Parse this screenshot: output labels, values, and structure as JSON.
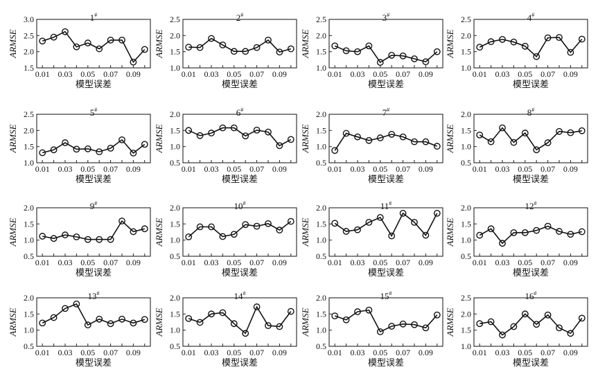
{
  "chart_data": [
    {
      "type": "line",
      "title": "1",
      "title_sup": "#",
      "xlabel": "模型误差",
      "ylabel": "ARMSE",
      "x": [
        0.01,
        0.02,
        0.03,
        0.04,
        0.05,
        0.06,
        0.07,
        0.08,
        0.09,
        0.1
      ],
      "xticks": [
        "0.01",
        "0.03",
        "0.05",
        "0.07",
        "0.09"
      ],
      "ylim": [
        1.5,
        3.0
      ],
      "yticks": [
        "1.5",
        "2.0",
        "2.5",
        "3.0"
      ],
      "values": [
        2.33,
        2.45,
        2.62,
        2.15,
        2.27,
        2.09,
        2.36,
        2.36,
        1.68,
        2.07
      ]
    },
    {
      "type": "line",
      "title": "2",
      "title_sup": "#",
      "xlabel": "模型误差",
      "ylabel": "ARMSE",
      "x": [
        0.01,
        0.02,
        0.03,
        0.04,
        0.05,
        0.06,
        0.07,
        0.08,
        0.09,
        0.1
      ],
      "xticks": [
        "0.01",
        "0.03",
        "0.05",
        "0.07",
        "0.09"
      ],
      "ylim": [
        1.0,
        2.5
      ],
      "yticks": [
        "1.0",
        "1.5",
        "2.0",
        "2.5"
      ],
      "values": [
        1.64,
        1.63,
        1.91,
        1.71,
        1.51,
        1.51,
        1.63,
        1.86,
        1.49,
        1.59
      ]
    },
    {
      "type": "line",
      "title": "3",
      "title_sup": "#",
      "xlabel": "模型误差",
      "ylabel": "ARMSE",
      "x": [
        0.01,
        0.02,
        0.03,
        0.04,
        0.05,
        0.06,
        0.07,
        0.08,
        0.09,
        0.1
      ],
      "xticks": [
        "0.01",
        "0.03",
        "0.05",
        "0.07",
        "0.09"
      ],
      "ylim": [
        1.0,
        2.5
      ],
      "yticks": [
        "1.0",
        "1.5",
        "2.0",
        "2.5"
      ],
      "values": [
        1.68,
        1.53,
        1.5,
        1.68,
        1.17,
        1.39,
        1.37,
        1.28,
        1.19,
        1.5
      ]
    },
    {
      "type": "line",
      "title": "4",
      "title_sup": "#",
      "xlabel": "模型误差",
      "ylabel": "ARMSE",
      "x": [
        0.01,
        0.02,
        0.03,
        0.04,
        0.05,
        0.06,
        0.07,
        0.08,
        0.09,
        0.1
      ],
      "xticks": [
        "0.01",
        "0.03",
        "0.05",
        "0.07",
        "0.09"
      ],
      "ylim": [
        1.0,
        2.5
      ],
      "yticks": [
        "1.0",
        "1.5",
        "2.0",
        "2.5"
      ],
      "values": [
        1.64,
        1.81,
        1.88,
        1.8,
        1.67,
        1.35,
        1.93,
        1.94,
        1.48,
        1.89
      ]
    },
    {
      "type": "line",
      "title": "5",
      "title_sup": "#",
      "xlabel": "模型误差",
      "ylabel": "ARMSE",
      "x": [
        0.01,
        0.02,
        0.03,
        0.04,
        0.05,
        0.06,
        0.07,
        0.08,
        0.09,
        0.1
      ],
      "xticks": [
        "0.01",
        "0.03",
        "0.05",
        "0.07",
        "0.09"
      ],
      "ylim": [
        1.0,
        2.5
      ],
      "yticks": [
        "1.0",
        "1.5",
        "2.0",
        "2.5"
      ],
      "values": [
        1.31,
        1.4,
        1.62,
        1.42,
        1.43,
        1.34,
        1.45,
        1.71,
        1.3,
        1.57
      ]
    },
    {
      "type": "line",
      "title": "6",
      "title_sup": "#",
      "xlabel": "模型误差",
      "ylabel": "ARMSE",
      "x": [
        0.01,
        0.02,
        0.03,
        0.04,
        0.05,
        0.06,
        0.07,
        0.08,
        0.09,
        0.1
      ],
      "xticks": [
        "0.01",
        "0.03",
        "0.05",
        "0.07",
        "0.09"
      ],
      "ylim": [
        0.5,
        2.0
      ],
      "yticks": [
        "0.5",
        "1.0",
        "1.5",
        "2.0"
      ],
      "values": [
        1.5,
        1.34,
        1.42,
        1.58,
        1.58,
        1.33,
        1.51,
        1.45,
        1.03,
        1.22
      ]
    },
    {
      "type": "line",
      "title": "7",
      "title_sup": "#",
      "xlabel": "模型误差",
      "ylabel": "ARMSE",
      "x": [
        0.01,
        0.02,
        0.03,
        0.04,
        0.05,
        0.06,
        0.07,
        0.08,
        0.09,
        0.1
      ],
      "xticks": [
        "0.01",
        "0.03",
        "0.05",
        "0.07",
        "0.09"
      ],
      "ylim": [
        0.5,
        2.0
      ],
      "yticks": [
        "0.5",
        "1.0",
        "1.5",
        "2.0"
      ],
      "values": [
        0.88,
        1.41,
        1.3,
        1.19,
        1.27,
        1.38,
        1.3,
        1.15,
        1.15,
        1.01
      ]
    },
    {
      "type": "line",
      "title": "8",
      "title_sup": "#",
      "xlabel": "模型误差",
      "ylabel": "ARMSE",
      "x": [
        0.01,
        0.02,
        0.03,
        0.04,
        0.05,
        0.06,
        0.07,
        0.08,
        0.09,
        0.1
      ],
      "xticks": [
        "0.01",
        "0.03",
        "0.05",
        "0.07",
        "0.09"
      ],
      "ylim": [
        0.5,
        2.0
      ],
      "yticks": [
        "0.5",
        "1.0",
        "1.5",
        "2.0"
      ],
      "values": [
        1.36,
        1.15,
        1.58,
        1.13,
        1.42,
        0.9,
        1.12,
        1.47,
        1.43,
        1.49
      ]
    },
    {
      "type": "line",
      "title": "9",
      "title_sup": "#",
      "xlabel": "模型误差",
      "ylabel": "ARMSE",
      "x": [
        0.01,
        0.02,
        0.03,
        0.04,
        0.05,
        0.06,
        0.07,
        0.08,
        0.09,
        0.1
      ],
      "xticks": [
        "0.01",
        "0.03",
        "0.05",
        "0.07",
        "0.09"
      ],
      "ylim": [
        0.5,
        2.0
      ],
      "yticks": [
        "0.5",
        "1.0",
        "1.5",
        "2.0"
      ],
      "values": [
        1.12,
        1.05,
        1.16,
        1.1,
        1.02,
        1.02,
        1.02,
        1.59,
        1.26,
        1.35
      ]
    },
    {
      "type": "line",
      "title": "10",
      "title_sup": "#",
      "xlabel": "模型误差",
      "ylabel": "ARMSE",
      "x": [
        0.01,
        0.02,
        0.03,
        0.04,
        0.05,
        0.06,
        0.07,
        0.08,
        0.09,
        0.1
      ],
      "xticks": [
        "0.01",
        "0.03",
        "0.05",
        "0.07",
        "0.09"
      ],
      "ylim": [
        0.5,
        2.0
      ],
      "yticks": [
        "0.5",
        "1.0",
        "1.5",
        "2.0"
      ],
      "values": [
        1.1,
        1.41,
        1.41,
        1.11,
        1.18,
        1.48,
        1.43,
        1.51,
        1.31,
        1.58
      ]
    },
    {
      "type": "line",
      "title": "11",
      "title_sup": "#",
      "xlabel": "模型误差",
      "ylabel": "ARMSE",
      "x": [
        0.01,
        0.02,
        0.03,
        0.04,
        0.05,
        0.06,
        0.07,
        0.08,
        0.09,
        0.1
      ],
      "xticks": [
        "0.01",
        "0.03",
        "0.05",
        "0.07",
        "0.09"
      ],
      "ylim": [
        0.5,
        2.0
      ],
      "yticks": [
        "0.5",
        "1.0",
        "1.5",
        "2.0"
      ],
      "values": [
        1.52,
        1.27,
        1.32,
        1.55,
        1.7,
        1.13,
        1.83,
        1.55,
        1.15,
        1.83
      ]
    },
    {
      "type": "line",
      "title": "12",
      "title_sup": "#",
      "xlabel": "模型误差",
      "ylabel": "ARMSE",
      "x": [
        0.01,
        0.02,
        0.03,
        0.04,
        0.05,
        0.06,
        0.07,
        0.08,
        0.09,
        0.1
      ],
      "xticks": [
        "0.01",
        "0.03",
        "0.05",
        "0.07",
        "0.09"
      ],
      "ylim": [
        0.5,
        2.0
      ],
      "yticks": [
        "0.5",
        "1.0",
        "1.5",
        "2.0"
      ],
      "values": [
        1.15,
        1.35,
        0.9,
        1.23,
        1.23,
        1.3,
        1.43,
        1.27,
        1.18,
        1.26
      ]
    },
    {
      "type": "line",
      "title": "13",
      "title_sup": "#",
      "xlabel": "模型误差",
      "ylabel": "ARMSE",
      "x": [
        0.01,
        0.02,
        0.03,
        0.04,
        0.05,
        0.06,
        0.07,
        0.08,
        0.09,
        0.1
      ],
      "xticks": [
        "0.01",
        "0.03",
        "0.05",
        "0.07",
        "0.09"
      ],
      "ylim": [
        0.5,
        2.0
      ],
      "yticks": [
        "0.5",
        "1.0",
        "1.5",
        "2.0"
      ],
      "values": [
        1.22,
        1.39,
        1.67,
        1.81,
        1.16,
        1.34,
        1.2,
        1.34,
        1.22,
        1.33
      ]
    },
    {
      "type": "line",
      "title": "14",
      "title_sup": "#",
      "xlabel": "模型误差",
      "ylabel": "ARMSE",
      "x": [
        0.01,
        0.02,
        0.03,
        0.04,
        0.05,
        0.06,
        0.07,
        0.08,
        0.09,
        0.1
      ],
      "xticks": [
        "0.01",
        "0.03",
        "0.05",
        "0.07",
        "0.09"
      ],
      "ylim": [
        0.5,
        2.0
      ],
      "yticks": [
        "0.5",
        "1.0",
        "1.5",
        "2.0"
      ],
      "values": [
        1.36,
        1.24,
        1.5,
        1.54,
        1.2,
        0.9,
        1.72,
        1.14,
        1.11,
        1.58
      ]
    },
    {
      "type": "line",
      "title": "15",
      "title_sup": "#",
      "xlabel": "模型误差",
      "ylabel": "ARMSE",
      "x": [
        0.01,
        0.02,
        0.03,
        0.04,
        0.05,
        0.06,
        0.07,
        0.08,
        0.09,
        0.1
      ],
      "xticks": [
        "0.01",
        "0.03",
        "0.05",
        "0.07",
        "0.09"
      ],
      "ylim": [
        0.5,
        2.0
      ],
      "yticks": [
        "0.5",
        "1.0",
        "1.5",
        "2.0"
      ],
      "values": [
        1.44,
        1.32,
        1.57,
        1.62,
        0.95,
        1.12,
        1.19,
        1.17,
        1.07,
        1.47
      ]
    },
    {
      "type": "line",
      "title": "16",
      "title_sup": "#",
      "xlabel": "模型误差",
      "ylabel": "ARMSE",
      "x": [
        0.01,
        0.02,
        0.03,
        0.04,
        0.05,
        0.06,
        0.07,
        0.08,
        0.09,
        0.1
      ],
      "xticks": [
        "0.01",
        "0.03",
        "0.05",
        "0.07",
        "0.09"
      ],
      "ylim": [
        1.0,
        2.5
      ],
      "yticks": [
        "1.0",
        "1.5",
        "2.0",
        "2.5"
      ],
      "values": [
        1.7,
        1.76,
        1.35,
        1.61,
        2.0,
        1.68,
        1.97,
        1.57,
        1.4,
        1.87
      ]
    }
  ]
}
